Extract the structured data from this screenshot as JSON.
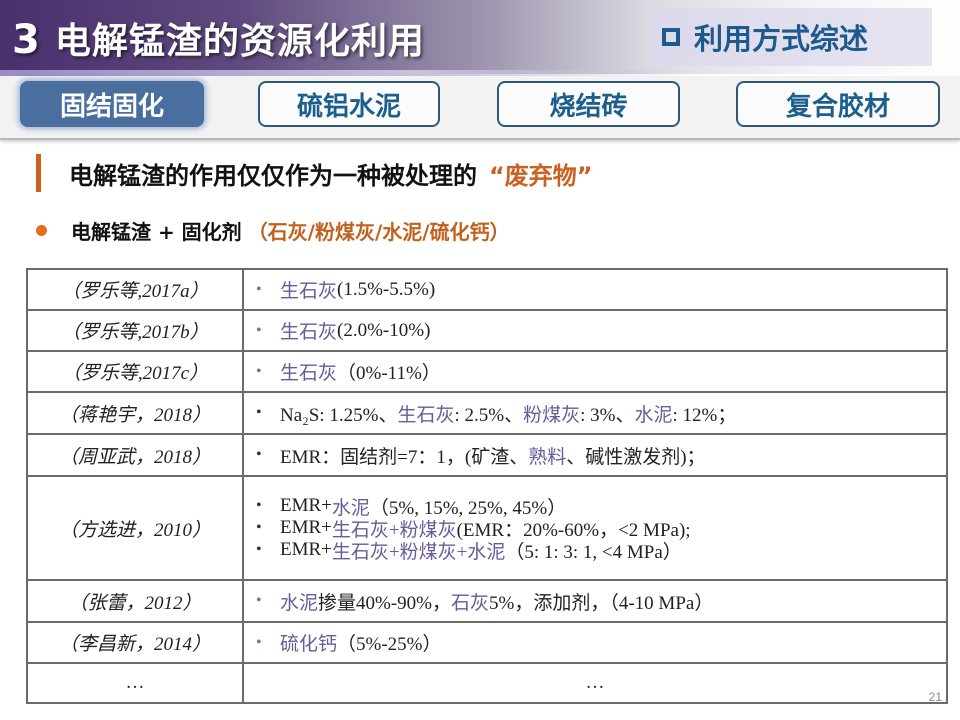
{
  "header": {
    "section_number": "3",
    "title": "电解锰渣的资源化利用",
    "section_tag": "利用方式综述"
  },
  "tabs": [
    {
      "label": "固结固化",
      "active": true
    },
    {
      "label": "硫铝水泥",
      "active": false
    },
    {
      "label": "烧结砖",
      "active": false
    },
    {
      "label": "复合胶材",
      "active": false
    }
  ],
  "claim": {
    "text": "电解锰渣的作用仅仅作为一种被处理的",
    "highlight": "“废弃物”"
  },
  "bullet": {
    "text": "电解锰渣 + 固化剂",
    "highlight": "（石灰/粉煤灰/水泥/硫化钙）"
  },
  "table": {
    "rows": [
      {
        "source": "（罗乐等,2017a）",
        "lines": [
          [
            {
              "t": "生石灰",
              "p": true
            },
            {
              "t": "(1.5%-5.5%)",
              "p": false
            }
          ]
        ]
      },
      {
        "source": "（罗乐等,2017b）",
        "lines": [
          [
            {
              "t": "生石灰",
              "p": true
            },
            {
              "t": "(2.0%-10%)",
              "p": false
            }
          ]
        ]
      },
      {
        "source": "（罗乐等,2017c）",
        "lines": [
          [
            {
              "t": "生石灰",
              "p": true
            },
            {
              "t": "（0%-11%）",
              "p": false
            }
          ]
        ]
      },
      {
        "source": "（蒋艳宇，2018）",
        "lines": [
          [
            {
              "t": "Na₂S: 1.25%、",
              "p": false
            },
            {
              "t": "生石灰",
              "p": true
            },
            {
              "t": ": 2.5%、",
              "p": false
            },
            {
              "t": "粉煤灰",
              "p": true
            },
            {
              "t": ": 3%、",
              "p": false
            },
            {
              "t": "水泥",
              "p": true
            },
            {
              "t": ": 12%；",
              "p": false
            }
          ]
        ]
      },
      {
        "source": "（周亚武，2018）",
        "lines": [
          [
            {
              "t": "EMR：固结剂=7：1，(矿渣、",
              "p": false
            },
            {
              "t": "熟料",
              "p": true
            },
            {
              "t": "、碱性激发剂)；",
              "p": false
            }
          ]
        ]
      },
      {
        "source": "（方选进，2010）",
        "lines": [
          [
            {
              "t": "EMR+",
              "p": false
            },
            {
              "t": "水泥",
              "p": true
            },
            {
              "t": "（5%, 15%, 25%, 45%）",
              "p": false
            }
          ],
          [
            {
              "t": "EMR+",
              "p": false
            },
            {
              "t": "生石灰+粉煤灰",
              "p": true
            },
            {
              "t": " (EMR：20%-60%，<2 MPa);",
              "p": false
            }
          ],
          [
            {
              "t": "EMR+",
              "p": false
            },
            {
              "t": "生石灰+粉煤灰+水泥",
              "p": true
            },
            {
              "t": "（5: 1: 3: 1, <4 MPa）",
              "p": false
            }
          ]
        ]
      },
      {
        "source": "（张蕾，2012）",
        "lines": [
          [
            {
              "t": "水泥",
              "p": true
            },
            {
              "t": "掺量40%-90%，",
              "p": false
            },
            {
              "t": "石灰",
              "p": true
            },
            {
              "t": "5%，添加剂，（4-10 MPa）",
              "p": false
            }
          ]
        ]
      },
      {
        "source": "（李昌新，2014）",
        "lines": [
          [
            {
              "t": "硫化钙",
              "p": true
            },
            {
              "t": "（5%-25%）",
              "p": false
            }
          ]
        ]
      }
    ],
    "ellipsis_left": "…",
    "ellipsis_right": "…"
  },
  "page_number": "21",
  "colors": {
    "accent_orange": "#c8621e",
    "tab_blue": "#1c5f8e",
    "purple_text": "#6b5a9a"
  }
}
